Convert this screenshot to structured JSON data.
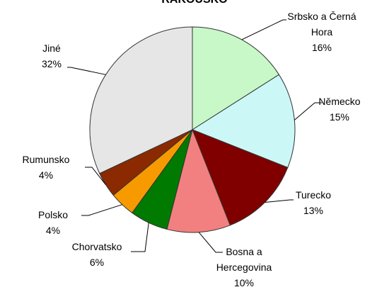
{
  "chart_data": {
    "type": "pie",
    "title": "RAKOUSKO",
    "categories": [
      "Srbsko a Černá Hora",
      "Německo",
      "Turecko",
      "Bosna a Hercegovina",
      "Chorvatsko",
      "Polsko",
      "Rumunsko",
      "Jiné"
    ],
    "values": [
      16,
      15,
      13,
      10,
      6,
      4,
      4,
      32
    ],
    "value_labels": [
      "16%",
      "15%",
      "13%",
      "10%",
      "6%",
      "4%",
      "4%",
      "32%"
    ],
    "colors": [
      "#c8f7c8",
      "#ccf7f7",
      "#800000",
      "#f28080",
      "#007a00",
      "#f79a00",
      "#8b2a00",
      "#e6e6e6"
    ]
  }
}
